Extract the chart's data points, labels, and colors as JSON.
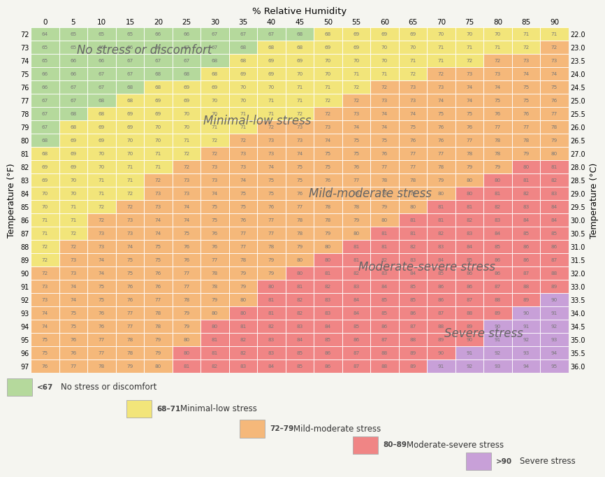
{
  "xlabel_top": "% Relative Humidity",
  "ylabel_left": "Temperature (°F)",
  "ylabel_right": "Temperature (°C)",
  "temp_f": [
    72,
    73,
    74,
    75,
    76,
    77,
    78,
    79,
    80,
    81,
    82,
    83,
    84,
    85,
    86,
    87,
    88,
    89,
    90,
    91,
    92,
    93,
    94,
    95,
    96,
    97
  ],
  "temp_c": [
    "22.0",
    "23.0",
    "23.5",
    "24.0",
    "24.5",
    "25.0",
    "25.5",
    "26.0",
    "26.5",
    "27.0",
    "28.0",
    "28.5",
    "29.0",
    "29.5",
    "30.0",
    "30.5",
    "31.0",
    "31.5",
    "32.0",
    "33.0",
    "33.5",
    "34.0",
    "34.5",
    "35.0",
    "35.5",
    "36.0"
  ],
  "humidity": [
    0,
    5,
    10,
    15,
    20,
    25,
    30,
    35,
    40,
    45,
    50,
    55,
    60,
    65,
    70,
    75,
    80,
    85,
    90
  ],
  "colors": {
    "no_stress": "#b5d99c",
    "minimal_low": "#f2e57a",
    "mild_moderate": "#f5b87a",
    "moderate_severe": "#f08585",
    "severe": "#c8a0d8"
  },
  "zone_labels": [
    {
      "text": "No stress or discomfort",
      "row": 1.2,
      "col": 3.5,
      "fs": 12
    },
    {
      "text": "Minimal-low stress",
      "row": 6.5,
      "col": 7.5,
      "fs": 12
    },
    {
      "text": "Mild-moderate stress",
      "row": 12.0,
      "col": 11.5,
      "fs": 12
    },
    {
      "text": "Moderate-severe stress",
      "row": 17.5,
      "col": 13.5,
      "fs": 12
    },
    {
      "text": "Severe stress",
      "row": 22.5,
      "col": 15.5,
      "fs": 12
    }
  ],
  "legend_items": [
    {
      "range": "<67",
      "label": "No stress or discomfort",
      "color": "#b5d99c",
      "xf": 0.03
    },
    {
      "range": "68–71",
      "label": "Minimal-low stress",
      "color": "#f2e57a",
      "xf": 0.23
    },
    {
      "range": "72–79",
      "label": "Mild-moderate stress",
      "color": "#f5b87a",
      "xf": 0.42
    },
    {
      "range": "80–89",
      "label": "Moderate-severe stress",
      "color": "#f08585",
      "xf": 0.59
    },
    {
      "range": ">90",
      "label": "Severe stress",
      "color": "#c8a0d8",
      "xf": 0.77
    }
  ],
  "text_color": "#777777",
  "zone_text_color": "#666666",
  "bg_color": "#f5f5f0"
}
